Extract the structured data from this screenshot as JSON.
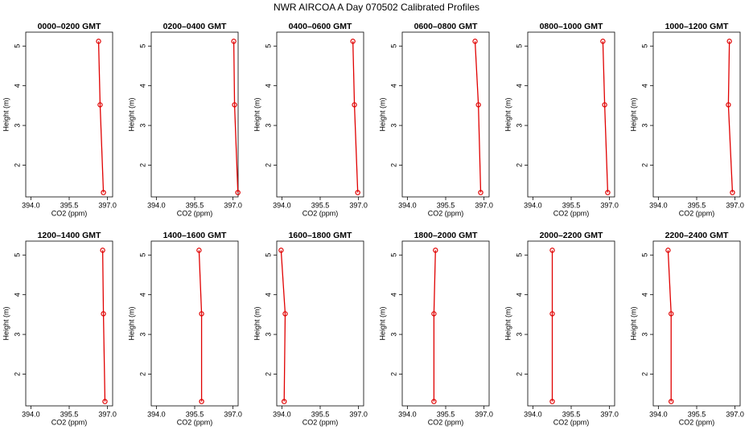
{
  "title": "NWR AIRCOA A  Day 070502  Calibrated Profiles",
  "chart_data": [
    {
      "type": "line",
      "title": "0000–0200 GMT",
      "xlabel": "CO2 (ppm)",
      "ylabel": "Height (m)",
      "color": "#e00000",
      "values": [
        396.65,
        396.71,
        396.84
      ],
      "heights": [
        5.12,
        3.52,
        1.31
      ],
      "xlim": [
        393.8,
        397.2
      ],
      "ylim": [
        1.2,
        5.35
      ],
      "xticks": [
        {
          "value": 394,
          "label": "394.0"
        },
        395.5,
        {
          "value": 397,
          "label": "397.0"
        }
      ],
      "yticks": [
        2,
        3,
        4,
        5
      ]
    },
    {
      "type": "line",
      "title": "0200–0400 GMT",
      "xlabel": "CO2 (ppm)",
      "ylabel": "Height (m)",
      "color": "#e00000",
      "values": [
        397.03,
        397.06,
        397.19
      ],
      "heights": [
        5.12,
        3.52,
        1.31
      ],
      "xlim": [
        393.8,
        397.2
      ],
      "ylim": [
        1.2,
        5.35
      ],
      "xticks": [
        {
          "value": 394,
          "label": "394.0"
        },
        395.5,
        {
          "value": 397,
          "label": "397.0"
        }
      ],
      "yticks": [
        2,
        3,
        4,
        5
      ]
    },
    {
      "type": "line",
      "title": "0400–0600 GMT",
      "xlabel": "CO2 (ppm)",
      "ylabel": "Height (m)",
      "color": "#e00000",
      "values": [
        396.78,
        396.84,
        396.97
      ],
      "heights": [
        5.12,
        3.52,
        1.31
      ],
      "xlim": [
        393.8,
        397.2
      ],
      "ylim": [
        1.2,
        5.35
      ],
      "xticks": [
        {
          "value": 394,
          "label": "394.0"
        },
        395.5,
        {
          "value": 397,
          "label": "397.0"
        }
      ],
      "yticks": [
        2,
        3,
        4,
        5
      ]
    },
    {
      "type": "line",
      "title": "0600–0800 GMT",
      "xlabel": "CO2 (ppm)",
      "ylabel": "Height (m)",
      "color": "#e00000",
      "values": [
        396.65,
        396.78,
        396.87
      ],
      "heights": [
        5.12,
        3.52,
        1.31
      ],
      "xlim": [
        393.8,
        397.2
      ],
      "ylim": [
        1.2,
        5.35
      ],
      "xticks": [
        {
          "value": 394,
          "label": "394.0"
        },
        395.5,
        {
          "value": 397,
          "label": "397.0"
        }
      ],
      "yticks": [
        2,
        3,
        4,
        5
      ]
    },
    {
      "type": "line",
      "title": "0800–1000 GMT",
      "xlabel": "CO2 (ppm)",
      "ylabel": "Height (m)",
      "color": "#e00000",
      "values": [
        396.74,
        396.81,
        396.93
      ],
      "heights": [
        5.12,
        3.52,
        1.31
      ],
      "xlim": [
        393.8,
        397.2
      ],
      "ylim": [
        1.2,
        5.35
      ],
      "xticks": [
        {
          "value": 394,
          "label": "394.0"
        },
        395.5,
        {
          "value": 397,
          "label": "397.0"
        }
      ],
      "yticks": [
        2,
        3,
        4,
        5
      ]
    },
    {
      "type": "line",
      "title": "1000–1200 GMT",
      "xlabel": "CO2 (ppm)",
      "ylabel": "Height (m)",
      "color": "#e00000",
      "values": [
        396.78,
        396.74,
        396.9
      ],
      "heights": [
        5.12,
        3.52,
        1.31
      ],
      "xlim": [
        393.8,
        397.2
      ],
      "ylim": [
        1.2,
        5.35
      ],
      "xticks": [
        {
          "value": 394,
          "label": "394.0"
        },
        395.5,
        {
          "value": 397,
          "label": "397.0"
        }
      ],
      "yticks": [
        2,
        3,
        4,
        5
      ]
    },
    {
      "type": "line",
      "title": "1200–1400 GMT",
      "xlabel": "CO2 (ppm)",
      "ylabel": "Height (m)",
      "color": "#e00000",
      "values": [
        396.81,
        396.84,
        396.9
      ],
      "heights": [
        5.12,
        3.52,
        1.31
      ],
      "xlim": [
        393.8,
        397.2
      ],
      "ylim": [
        1.2,
        5.35
      ],
      "xticks": [
        {
          "value": 394,
          "label": "394.0"
        },
        395.5,
        {
          "value": 397,
          "label": "397.0"
        }
      ],
      "yticks": [
        2,
        3,
        4,
        5
      ]
    },
    {
      "type": "line",
      "title": "1400–1600 GMT",
      "xlabel": "CO2 (ppm)",
      "ylabel": "Height (m)",
      "color": "#e00000",
      "values": [
        395.67,
        395.77,
        395.77
      ],
      "heights": [
        5.12,
        3.52,
        1.31
      ],
      "xlim": [
        393.8,
        397.2
      ],
      "ylim": [
        1.2,
        5.35
      ],
      "xticks": [
        {
          "value": 394,
          "label": "394.0"
        },
        395.5,
        {
          "value": 397,
          "label": "397.0"
        }
      ],
      "yticks": [
        2,
        3,
        4,
        5
      ]
    },
    {
      "type": "line",
      "title": "1600–1800 GMT",
      "xlabel": "CO2 (ppm)",
      "ylabel": "Height (m)",
      "color": "#e00000",
      "values": [
        393.97,
        394.13,
        394.09
      ],
      "heights": [
        5.12,
        3.52,
        1.31
      ],
      "xlim": [
        393.8,
        397.2
      ],
      "ylim": [
        1.2,
        5.35
      ],
      "xticks": [
        {
          "value": 394,
          "label": "394.0"
        },
        395.5,
        {
          "value": 397,
          "label": "397.0"
        }
      ],
      "yticks": [
        2,
        3,
        4,
        5
      ]
    },
    {
      "type": "line",
      "title": "1800–2000 GMT",
      "xlabel": "CO2 (ppm)",
      "ylabel": "Height (m)",
      "color": "#e00000",
      "values": [
        395.1,
        395.04,
        395.04
      ],
      "heights": [
        5.12,
        3.52,
        1.31
      ],
      "xlim": [
        393.8,
        397.2
      ],
      "ylim": [
        1.2,
        5.35
      ],
      "xticks": [
        {
          "value": 394,
          "label": "394.0"
        },
        395.5,
        {
          "value": 397,
          "label": "397.0"
        }
      ],
      "yticks": [
        2,
        3,
        4,
        5
      ]
    },
    {
      "type": "line",
      "title": "2000–2200 GMT",
      "xlabel": "CO2 (ppm)",
      "ylabel": "Height (m)",
      "color": "#e00000",
      "values": [
        394.76,
        394.76,
        394.76
      ],
      "heights": [
        5.12,
        3.52,
        1.31
      ],
      "xlim": [
        393.8,
        397.2
      ],
      "ylim": [
        1.2,
        5.35
      ],
      "xticks": [
        {
          "value": 394,
          "label": "394.0"
        },
        395.5,
        {
          "value": 397,
          "label": "397.0"
        }
      ],
      "yticks": [
        2,
        3,
        4,
        5
      ]
    },
    {
      "type": "line",
      "title": "2200–2400 GMT",
      "xlabel": "CO2 (ppm)",
      "ylabel": "Height (m)",
      "color": "#e00000",
      "values": [
        394.38,
        394.5,
        394.5
      ],
      "heights": [
        5.12,
        3.52,
        1.31
      ],
      "xlim": [
        393.8,
        397.2
      ],
      "ylim": [
        1.2,
        5.35
      ],
      "xticks": [
        {
          "value": 394,
          "label": "394.0"
        },
        395.5,
        {
          "value": 397,
          "label": "397.0"
        }
      ],
      "yticks": [
        2,
        3,
        4,
        5
      ]
    }
  ]
}
